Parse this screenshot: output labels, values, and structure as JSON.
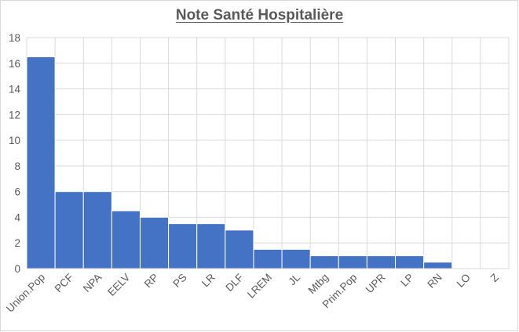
{
  "chart_data": {
    "type": "bar",
    "title": "Note Santé Hospitalière",
    "xlabel": "",
    "ylabel": "",
    "categories": [
      "Union.Pop",
      "PCF",
      "NPA",
      "EELV",
      "RP",
      "PS",
      "LR",
      "DLF",
      "LREM",
      "JL",
      "Mtbg",
      "Prim.Pop",
      "UPR",
      "LP",
      "RN",
      "LO",
      "Z"
    ],
    "values": [
      16.5,
      6,
      6,
      4.5,
      4,
      3.5,
      3.5,
      3,
      1.5,
      1.5,
      1,
      1,
      1,
      1,
      0.5,
      0,
      0
    ],
    "ylim": [
      0,
      18
    ],
    "yticks": [
      0,
      2,
      4,
      6,
      8,
      10,
      12,
      14,
      16,
      18
    ],
    "grid": true,
    "legend": "none",
    "bar_color": "#4472c4",
    "bar_edge_color": "#ffffff",
    "grid_color": "#d9d9d9"
  }
}
